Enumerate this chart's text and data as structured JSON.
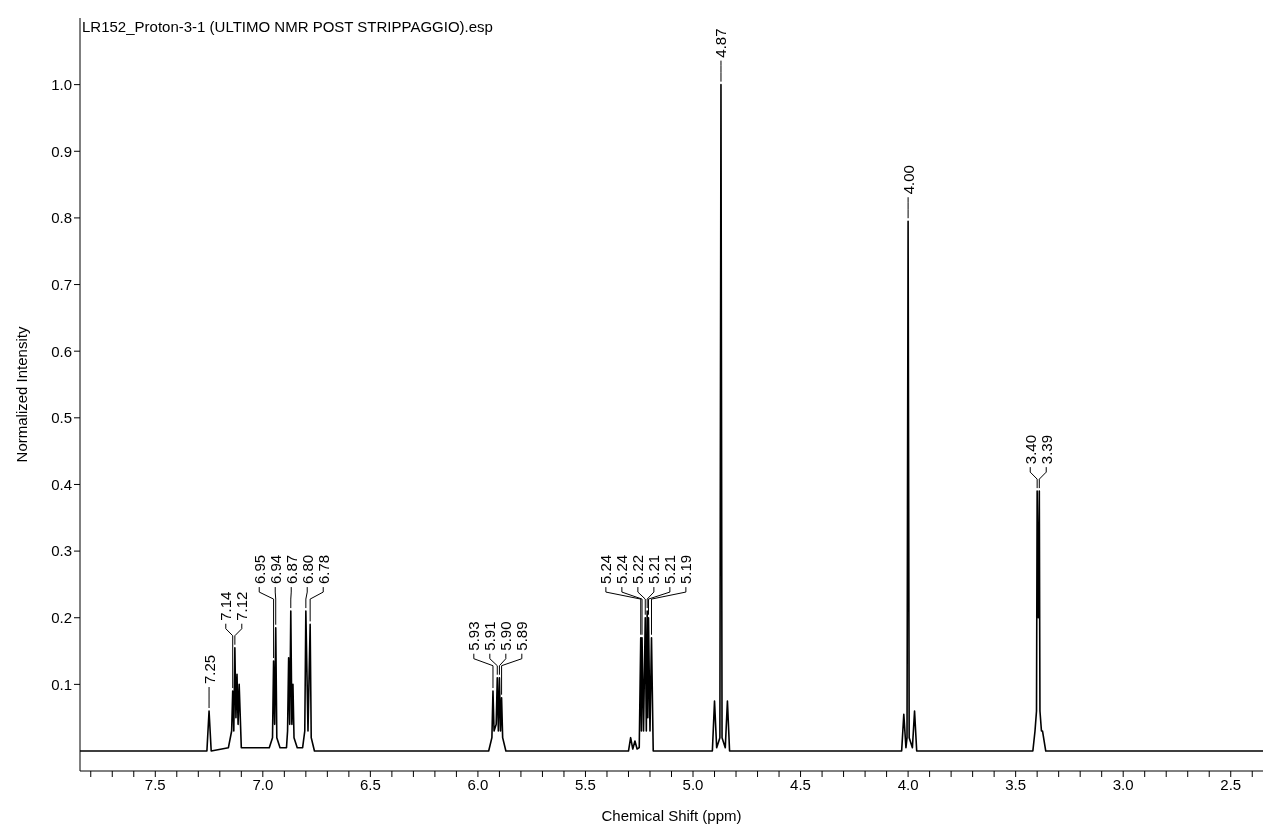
{
  "chart_data": {
    "type": "line",
    "title": "LR152_Proton-3-1 (ULTIMO NMR POST STRIPPAGGIO).esp",
    "xlabel": "Chemical Shift (ppm)",
    "ylabel": "Normalized Intensity",
    "xlim": [
      7.85,
      2.35
    ],
    "xticks": [
      {
        "value": 7.8,
        "label": null
      },
      {
        "value": 7.7,
        "label": null
      },
      {
        "value": 7.6,
        "label": null
      },
      7.5,
      {
        "value": 7.4,
        "label": null
      },
      {
        "value": 7.3,
        "label": null
      },
      {
        "value": 7.2,
        "label": null
      },
      {
        "value": 7.1,
        "label": null
      },
      {
        "value": 7,
        "label": "7.0"
      },
      {
        "value": 6.9,
        "label": null
      },
      {
        "value": 6.8,
        "label": null
      },
      {
        "value": 6.7,
        "label": null
      },
      {
        "value": 6.6,
        "label": null
      },
      6.5,
      {
        "value": 6.4,
        "label": null
      },
      {
        "value": 6.3,
        "label": null
      },
      {
        "value": 6.2,
        "label": null
      },
      {
        "value": 6.1,
        "label": null
      },
      {
        "value": 6,
        "label": "6.0"
      },
      {
        "value": 5.9,
        "label": null
      },
      {
        "value": 5.8,
        "label": null
      },
      {
        "value": 5.7,
        "label": null
      },
      {
        "value": 5.6,
        "label": null
      },
      5.5,
      {
        "value": 5.4,
        "label": null
      },
      {
        "value": 5.3,
        "label": null
      },
      {
        "value": 5.2,
        "label": null
      },
      {
        "value": 5.1,
        "label": null
      },
      {
        "value": 5,
        "label": "5.0"
      },
      {
        "value": 4.9,
        "label": null
      },
      {
        "value": 4.8,
        "label": null
      },
      {
        "value": 4.7,
        "label": null
      },
      {
        "value": 4.6,
        "label": null
      },
      4.5,
      {
        "value": 4.4,
        "label": null
      },
      {
        "value": 4.3,
        "label": null
      },
      {
        "value": 4.2,
        "label": null
      },
      {
        "value": 4.1,
        "label": null
      },
      {
        "value": 4,
        "label": "4.0"
      },
      {
        "value": 3.9,
        "label": null
      },
      {
        "value": 3.8,
        "label": null
      },
      {
        "value": 3.7,
        "label": null
      },
      {
        "value": 3.6,
        "label": null
      },
      3.5,
      {
        "value": 3.4,
        "label": null
      },
      {
        "value": 3.3,
        "label": null
      },
      {
        "value": 3.2,
        "label": null
      },
      {
        "value": 3.1,
        "label": null
      },
      {
        "value": 3,
        "label": "3.0"
      },
      {
        "value": 2.9,
        "label": null
      },
      {
        "value": 2.8,
        "label": null
      },
      {
        "value": 2.7,
        "label": null
      },
      {
        "value": 2.6,
        "label": null
      },
      2.5,
      {
        "value": 2.4,
        "label": null
      }
    ],
    "ylim": [
      -0.03,
      1.1
    ],
    "yticks": [
      0.1,
      0.2,
      0.3,
      0.4,
      0.5,
      0.6,
      0.7,
      0.8,
      0.9,
      {
        "value": 1,
        "label": "1.0"
      }
    ],
    "marker": "none",
    "line_style": "solid",
    "series": [
      {
        "color": "#000000",
        "x": [
          7.85,
          7.26,
          7.25,
          7.24,
          7.16,
          7.145,
          7.14,
          7.135,
          7.13,
          7.125,
          7.12,
          7.115,
          7.11,
          7.1,
          6.97,
          6.955,
          6.95,
          6.945,
          6.94,
          6.935,
          6.92,
          6.89,
          6.885,
          6.88,
          6.875,
          6.87,
          6.865,
          6.86,
          6.855,
          6.84,
          6.815,
          6.805,
          6.8,
          6.79,
          6.78,
          6.775,
          6.76,
          5.95,
          5.935,
          5.93,
          5.925,
          5.915,
          5.91,
          5.905,
          5.9,
          5.895,
          5.89,
          5.885,
          5.87,
          5.3,
          5.29,
          5.28,
          5.27,
          5.26,
          5.25,
          5.243,
          5.24,
          5.237,
          5.23,
          5.222,
          5.217,
          5.213,
          5.21,
          5.207,
          5.2,
          5.193,
          5.185,
          4.91,
          4.9,
          4.89,
          4.875,
          4.87,
          4.865,
          4.85,
          4.84,
          4.83,
          4.03,
          4.02,
          4.01,
          4.005,
          4.0,
          3.995,
          3.98,
          3.97,
          3.96,
          3.42,
          3.41,
          3.403,
          3.4,
          3.395,
          3.39,
          3.387,
          3.38,
          3.375,
          3.36,
          2.35
        ],
        "values": [
          0,
          0,
          0.06,
          0,
          0.005,
          0.03,
          0.09,
          0.03,
          0.155,
          0.05,
          0.115,
          0.04,
          0.1,
          0.005,
          0.005,
          0.02,
          0.135,
          0.04,
          0.185,
          0.02,
          0.005,
          0.005,
          0.03,
          0.14,
          0.04,
          0.21,
          0.04,
          0.1,
          0.02,
          0.005,
          0.005,
          0.03,
          0.21,
          0.03,
          0.19,
          0.02,
          0,
          0,
          0.02,
          0.09,
          0.03,
          0.04,
          0.11,
          0.03,
          0.11,
          0.03,
          0.08,
          0.02,
          0,
          0,
          0.02,
          0.003,
          0.015,
          0.003,
          0.005,
          0.17,
          0.03,
          0.17,
          0.03,
          0.2,
          0.03,
          0.21,
          0.05,
          0.2,
          0.03,
          0.17,
          0,
          0,
          0.075,
          0.005,
          0.02,
          1.0,
          0.02,
          0.005,
          0.075,
          0,
          0,
          0.055,
          0.005,
          0.02,
          0.795,
          0.02,
          0.005,
          0.06,
          0,
          0,
          0.03,
          0.06,
          0.39,
          0.2,
          0.39,
          0.06,
          0.03,
          0.03,
          0,
          0
        ]
      }
    ],
    "annotations": [
      {
        "text": "7.25",
        "x": 7.25,
        "y": 0.06
      },
      {
        "text": "7.14",
        "x": 7.14,
        "y": 0.09
      },
      {
        "text": "7.12",
        "x": 7.13,
        "y": 0.155
      },
      {
        "text": "6.95",
        "x": 6.95,
        "y": 0.135
      },
      {
        "text": "6.94",
        "x": 6.94,
        "y": 0.185
      },
      {
        "text": "6.87",
        "x": 6.87,
        "y": 0.21
      },
      {
        "text": "6.80",
        "x": 6.8,
        "y": 0.21
      },
      {
        "text": "6.78",
        "x": 6.78,
        "y": 0.19
      },
      {
        "text": "5.93",
        "x": 5.93,
        "y": 0.09
      },
      {
        "text": "5.91",
        "x": 5.91,
        "y": 0.11
      },
      {
        "text": "5.90",
        "x": 5.9,
        "y": 0.11
      },
      {
        "text": "5.89",
        "x": 5.89,
        "y": 0.08
      },
      {
        "text": "5.24",
        "x": 5.243,
        "y": 0.17
      },
      {
        "text": "5.24",
        "x": 5.237,
        "y": 0.17
      },
      {
        "text": "5.22",
        "x": 5.222,
        "y": 0.2
      },
      {
        "text": "5.21",
        "x": 5.213,
        "y": 0.21
      },
      {
        "text": "5.21",
        "x": 5.207,
        "y": 0.2
      },
      {
        "text": "5.19",
        "x": 5.193,
        "y": 0.17
      },
      {
        "text": "4.87",
        "x": 4.87,
        "y": 1.0
      },
      {
        "text": "4.00",
        "x": 4.0,
        "y": 0.795
      },
      {
        "text": "3.40",
        "x": 3.4,
        "y": 0.39
      },
      {
        "text": "3.39",
        "x": 3.39,
        "y": 0.39
      }
    ]
  }
}
